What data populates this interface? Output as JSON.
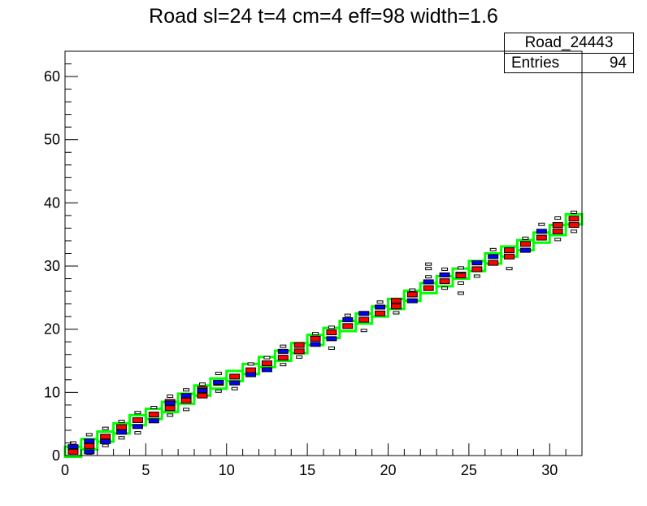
{
  "title": "Road sl=24 t=4 cm=4 eff=98 width=1.6",
  "stats": {
    "name": "Road_24443",
    "entries_label": "Entries",
    "entries_value": "94"
  },
  "colors": {
    "road_box": "#00ff00",
    "main_hit": "#ff0000",
    "alt_hit": "#0000ff",
    "outline": "#000000"
  },
  "chart_data": {
    "type": "heatmap",
    "title": "Road sl=24 t=4 cm=4 eff=98 width=1.6",
    "xlabel": "",
    "ylabel": "",
    "xlim": [
      0,
      32
    ],
    "ylim": [
      0,
      64
    ],
    "x_ticks": [
      "0",
      "5",
      "10",
      "15",
      "20",
      "25",
      "30"
    ],
    "y_ticks": [
      "0",
      "10",
      "20",
      "30",
      "40",
      "50",
      "60"
    ],
    "grid": false,
    "road_width": 1.6,
    "road_centers": [
      0.6,
      1.8,
      3.0,
      4.3,
      5.6,
      6.6,
      7.7,
      9.0,
      10.3,
      11.4,
      12.6,
      13.7,
      14.8,
      15.8,
      17.0,
      18.3,
      19.4,
      20.5,
      21.7,
      22.8,
      24.0,
      25.3,
      26.5,
      27.6,
      28.8,
      30.0,
      31.2,
      32.3,
      33.3,
      34.5,
      35.7,
      37.4
    ],
    "hits": [
      [
        0,
        0.6,
        "red"
      ],
      [
        0,
        1.4,
        "blue"
      ],
      [
        1,
        1.5,
        "red"
      ],
      [
        1,
        2.3,
        "blue"
      ],
      [
        1,
        0.6,
        "blue"
      ],
      [
        2,
        3.0,
        "red"
      ],
      [
        2,
        2.2,
        "blue"
      ],
      [
        3,
        4.5,
        "red"
      ],
      [
        3,
        3.7,
        "blue"
      ],
      [
        4,
        5.6,
        "red"
      ],
      [
        4,
        4.6,
        "blue"
      ],
      [
        5,
        6.5,
        "red"
      ],
      [
        5,
        5.5,
        "blue"
      ],
      [
        6,
        8.5,
        "red"
      ],
      [
        6,
        7.5,
        "red"
      ],
      [
        6,
        8.3,
        "blue"
      ],
      [
        7,
        8.7,
        "red"
      ],
      [
        7,
        9.5,
        "blue"
      ],
      [
        8,
        9.5,
        "red"
      ],
      [
        8,
        10.5,
        "red"
      ],
      [
        8,
        10.3,
        "blue"
      ],
      [
        9,
        11.5,
        "red"
      ],
      [
        9,
        11.6,
        "blue"
      ],
      [
        10,
        12.5,
        "red"
      ],
      [
        10,
        11.5,
        "blue"
      ],
      [
        11,
        13.5,
        "red"
      ],
      [
        11,
        12.8,
        "blue"
      ],
      [
        12,
        14.6,
        "red"
      ],
      [
        12,
        13.6,
        "blue"
      ],
      [
        13,
        15.5,
        "red"
      ],
      [
        13,
        16.5,
        "blue"
      ],
      [
        14,
        16.5,
        "red"
      ],
      [
        14,
        17.5,
        "red"
      ],
      [
        15,
        18.5,
        "red"
      ],
      [
        15,
        17.6,
        "blue"
      ],
      [
        16,
        19.5,
        "red"
      ],
      [
        16,
        18.5,
        "blue"
      ],
      [
        17,
        20.5,
        "red"
      ],
      [
        17,
        21.5,
        "blue"
      ],
      [
        18,
        21.5,
        "red"
      ],
      [
        18,
        22.5,
        "blue"
      ],
      [
        19,
        22.5,
        "red"
      ],
      [
        19,
        23.5,
        "blue"
      ],
      [
        20,
        23.6,
        "red"
      ],
      [
        20,
        24.5,
        "red"
      ],
      [
        21,
        25.5,
        "red"
      ],
      [
        21,
        24.5,
        "blue"
      ],
      [
        22,
        26.5,
        "red"
      ],
      [
        22,
        27.5,
        "blue"
      ],
      [
        23,
        27.6,
        "red"
      ],
      [
        23,
        28.6,
        "blue"
      ],
      [
        24,
        28.7,
        "blue"
      ],
      [
        24,
        28.5,
        "red"
      ],
      [
        25,
        29.5,
        "red"
      ],
      [
        25,
        30.5,
        "blue"
      ],
      [
        26,
        30.5,
        "red"
      ],
      [
        26,
        31.5,
        "blue"
      ],
      [
        27,
        31.5,
        "red"
      ],
      [
        27,
        32.5,
        "red"
      ],
      [
        28,
        33.5,
        "red"
      ],
      [
        28,
        32.5,
        "blue"
      ],
      [
        29,
        34.5,
        "red"
      ],
      [
        29,
        35.5,
        "blue"
      ],
      [
        30,
        35.5,
        "red"
      ],
      [
        30,
        36.5,
        "red"
      ],
      [
        31,
        36.5,
        "red"
      ],
      [
        31,
        37.5,
        "red"
      ]
    ],
    "outliers": [
      [
        0,
        2.0
      ],
      [
        1,
        3.3
      ],
      [
        1,
        0.4
      ],
      [
        2,
        4.3
      ],
      [
        2,
        1.6
      ],
      [
        3,
        5.4
      ],
      [
        3,
        2.8
      ],
      [
        4,
        6.8
      ],
      [
        4,
        3.6
      ],
      [
        5,
        7.6
      ],
      [
        6,
        9.4
      ],
      [
        6,
        6.4
      ],
      [
        7,
        10.4
      ],
      [
        7,
        7.3
      ],
      [
        8,
        11.3
      ],
      [
        9,
        13.0
      ],
      [
        9,
        10.2
      ],
      [
        10,
        10.6
      ],
      [
        11,
        14.5
      ],
      [
        12,
        15.5
      ],
      [
        13,
        17.3
      ],
      [
        13,
        14.4
      ],
      [
        14,
        15.6
      ],
      [
        15,
        19.3
      ],
      [
        16,
        20.3
      ],
      [
        16,
        17.0
      ],
      [
        17,
        22.2
      ],
      [
        18,
        19.8
      ],
      [
        19,
        24.3
      ],
      [
        20,
        22.6
      ],
      [
        21,
        26.2
      ],
      [
        22,
        28.3
      ],
      [
        22,
        29.6
      ],
      [
        22,
        30.3
      ],
      [
        23,
        29.5
      ],
      [
        23,
        26.5
      ],
      [
        24,
        29.7
      ],
      [
        24,
        27.3
      ],
      [
        24,
        25.7
      ],
      [
        25,
        28.4
      ],
      [
        26,
        32.6
      ],
      [
        27,
        29.6
      ],
      [
        28,
        34.4
      ],
      [
        29,
        36.6
      ],
      [
        30,
        37.6
      ],
      [
        30,
        34.2
      ],
      [
        31,
        38.5
      ],
      [
        31,
        35.5
      ]
    ]
  }
}
